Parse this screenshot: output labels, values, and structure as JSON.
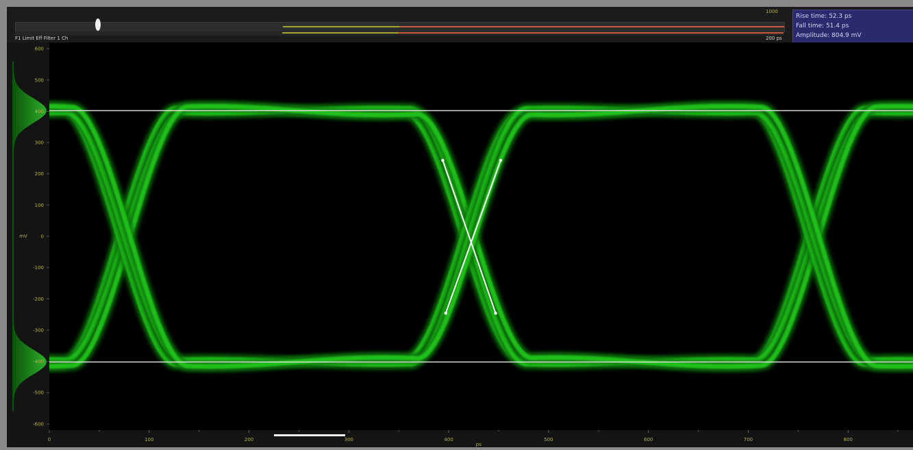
{
  "header": {
    "channel_label": "F1 Limit Eff Filter 1 Ch",
    "scale_ticks": [
      "",
      "",
      "",
      "1000"
    ],
    "time_unit": "200 ps"
  },
  "measurements": {
    "rise_time": "Rise time: 52.3 ps",
    "fall_time": "Fall time: 51.4 ps",
    "amplitude": "Amplitude: 804.9 mV"
  },
  "colors": {
    "trace": "#22c81e",
    "trace_glow": "#0f6e0c",
    "marker": "#ffffff",
    "tick_text": "#b9b04a",
    "panel": "#2c2a6e",
    "slider_olive": "#a7a62c",
    "slider_red": "#c8573e"
  },
  "chart_data": {
    "type": "line",
    "title": "",
    "xlabel": "ps",
    "ylabel": "mV",
    "xlim": [
      0,
      865
    ],
    "ylim": [
      -620,
      620
    ],
    "x_ticks": [
      0,
      100,
      200,
      300,
      400,
      500,
      600,
      700,
      800
    ],
    "y_ticks": [
      600,
      500,
      400,
      300,
      200,
      100,
      0,
      -100,
      -200,
      -300,
      -400,
      -500,
      -600
    ],
    "grid": false,
    "series": [
      {
        "pattern": "eye",
        "high_level": 402,
        "low_level": -402,
        "crossings": [
          75,
          420,
          763
        ],
        "crossing_level": 0
      }
    ],
    "annotations": {
      "top_level": 402,
      "bottom_level": -402,
      "rise_marker": {
        "from": [
          397,
          -246
        ],
        "to": [
          452,
          243
        ]
      },
      "fall_marker": {
        "from": [
          394,
          243
        ],
        "to": [
          447,
          -246
        ]
      }
    },
    "histogram": {
      "peaks": [
        402,
        -402
      ]
    }
  }
}
